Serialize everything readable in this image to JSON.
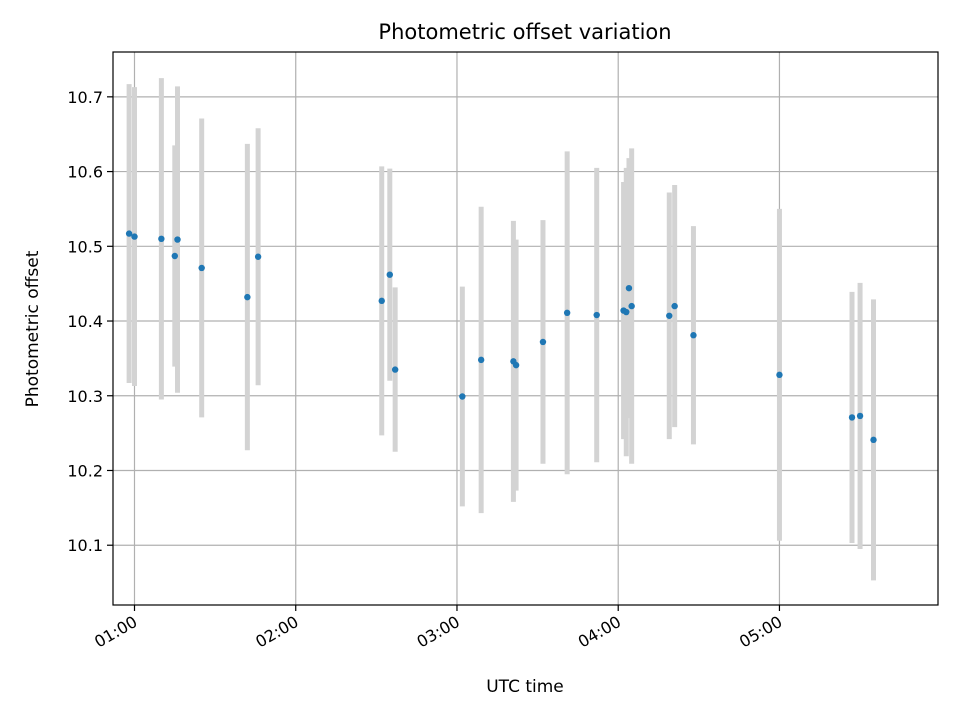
{
  "chart_data": {
    "type": "scatter",
    "title": "Photometric offset variation",
    "xlabel": "UTC time",
    "ylabel": "Photometric offset",
    "x_ticks": [
      "01:00",
      "02:00",
      "03:00",
      "04:00",
      "05:00"
    ],
    "y_ticks": [
      "10.1",
      "10.2",
      "10.3",
      "10.4",
      "10.5",
      "10.6",
      "10.7"
    ],
    "xlim": [
      "00:52",
      "05:59"
    ],
    "ylim": [
      10.02,
      10.76
    ],
    "grid": true,
    "marker_color": "#1f77b4",
    "errorbar_color": "#d3d3d3",
    "points": [
      {
        "time": "00:58",
        "y": 10.517,
        "err": 0.2
      },
      {
        "time": "01:00",
        "y": 10.513,
        "err": 0.2
      },
      {
        "time": "01:10",
        "y": 10.51,
        "err": 0.215
      },
      {
        "time": "01:15",
        "y": 10.487,
        "err": 0.148
      },
      {
        "time": "01:16",
        "y": 10.509,
        "err": 0.205
      },
      {
        "time": "01:25",
        "y": 10.471,
        "err": 0.2
      },
      {
        "time": "01:42",
        "y": 10.432,
        "err": 0.205
      },
      {
        "time": "01:46",
        "y": 10.486,
        "err": 0.172
      },
      {
        "time": "02:32",
        "y": 10.427,
        "err": 0.18
      },
      {
        "time": "02:35",
        "y": 10.462,
        "err": 0.142
      },
      {
        "time": "02:37",
        "y": 10.335,
        "err": 0.11
      },
      {
        "time": "03:02",
        "y": 10.299,
        "err": 0.147
      },
      {
        "time": "03:09",
        "y": 10.348,
        "err": 0.205
      },
      {
        "time": "03:21",
        "y": 10.346,
        "err": 0.188
      },
      {
        "time": "03:22",
        "y": 10.341,
        "err": 0.168
      },
      {
        "time": "03:32",
        "y": 10.372,
        "err": 0.163
      },
      {
        "time": "03:41",
        "y": 10.411,
        "err": 0.216
      },
      {
        "time": "03:52",
        "y": 10.408,
        "err": 0.197
      },
      {
        "time": "04:02",
        "y": 10.414,
        "err": 0.172
      },
      {
        "time": "04:03",
        "y": 10.412,
        "err": 0.193
      },
      {
        "time": "04:04",
        "y": 10.444,
        "err": 0.174
      },
      {
        "time": "04:05",
        "y": 10.42,
        "err": 0.211
      },
      {
        "time": "04:19",
        "y": 10.407,
        "err": 0.165
      },
      {
        "time": "04:21",
        "y": 10.42,
        "err": 0.162
      },
      {
        "time": "04:28",
        "y": 10.381,
        "err": 0.146
      },
      {
        "time": "05:00",
        "y": 10.328,
        "err": 0.222
      },
      {
        "time": "05:27",
        "y": 10.271,
        "err": 0.168
      },
      {
        "time": "05:30",
        "y": 10.273,
        "err": 0.178
      },
      {
        "time": "05:35",
        "y": 10.241,
        "err": 0.188
      }
    ]
  }
}
